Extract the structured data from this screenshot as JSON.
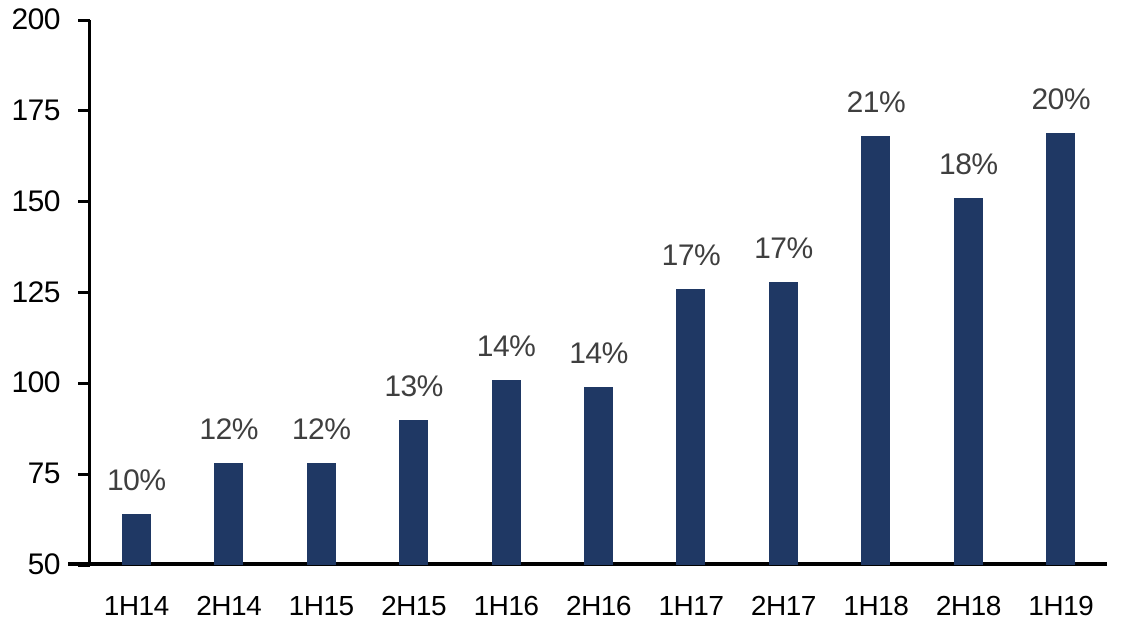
{
  "chart_data": {
    "type": "bar",
    "title": "",
    "xlabel": "",
    "ylabel": "",
    "categories": [
      "1H14",
      "2H14",
      "1H15",
      "2H15",
      "1H16",
      "2H16",
      "1H17",
      "2H17",
      "1H18",
      "2H18",
      "1H19"
    ],
    "values": [
      64,
      78,
      78,
      90,
      101,
      99,
      126,
      128,
      168,
      151,
      169
    ],
    "data_labels": [
      "10%",
      "12%",
      "12%",
      "13%",
      "14%",
      "14%",
      "17%",
      "17%",
      "21%",
      "18%",
      "20%"
    ],
    "ylim": [
      50,
      200
    ],
    "yticks": [
      50,
      75,
      100,
      125,
      150,
      175,
      200
    ],
    "grid": false,
    "legend": "none",
    "bar_color": "#1f3864",
    "data_label_color": "#3f3f3f",
    "axis_color": "#000000",
    "background_color": "#ffffff"
  }
}
